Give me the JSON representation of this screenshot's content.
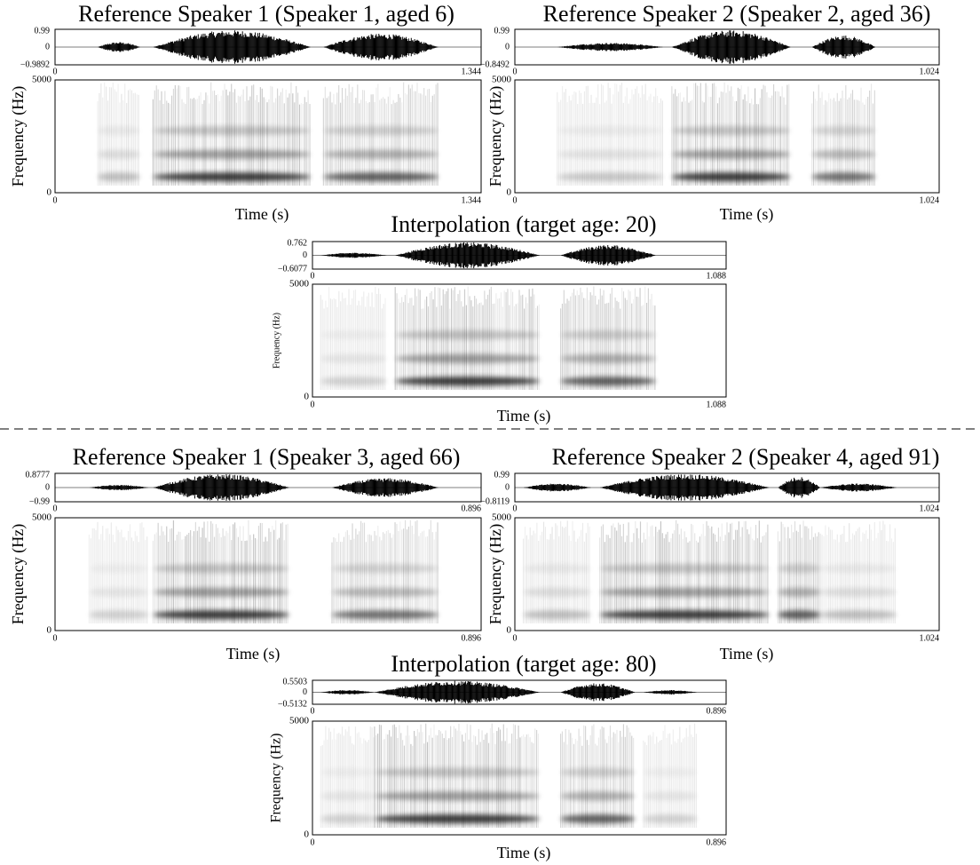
{
  "panels": [
    {
      "title": "Reference Speaker 1 (Speaker 1, aged 6)",
      "wave_yticks": [
        "0.99",
        "0",
        "−0.9892"
      ],
      "wave_xticks": [
        "0",
        "1.344"
      ],
      "spec_yticks": [
        "5000",
        "0"
      ],
      "spec_xticks": [
        "0",
        "1.344"
      ],
      "ylabel": "Frequency (Hz)",
      "xlabel": "Time (s)"
    },
    {
      "title": "Reference Speaker 2 (Speaker 2, aged 36)",
      "wave_yticks": [
        "0.99",
        "0",
        "−0.8492"
      ],
      "wave_xticks": [
        "0",
        "1.024"
      ],
      "spec_yticks": [
        "5000",
        "0"
      ],
      "spec_xticks": [
        "0",
        "1.024"
      ],
      "ylabel": "Frequency (Hz)",
      "xlabel": "Time (s)"
    },
    {
      "title": "Interpolation  (target age: 20)",
      "wave_yticks": [
        "0.762",
        "0",
        "−0.6077"
      ],
      "wave_xticks": [
        "0",
        "1.088"
      ],
      "spec_yticks": [
        "5000",
        "0"
      ],
      "spec_xticks": [
        "0",
        "1.088"
      ],
      "ylabel": "Frequency (Hz)",
      "xlabel": "Time (s)"
    },
    {
      "title": "Reference Speaker 1 (Speaker 3, aged 66)",
      "wave_yticks": [
        "0.8777",
        "0",
        "−0.99"
      ],
      "wave_xticks": [
        "0",
        "0.896"
      ],
      "spec_yticks": [
        "5000",
        "0"
      ],
      "spec_xticks": [
        "0",
        "0.896"
      ],
      "ylabel": "Frequency (Hz)",
      "xlabel": "Time (s)"
    },
    {
      "title": "Reference Speaker 2 (Speaker 4, aged 91)",
      "wave_yticks": [
        "0.99",
        "0",
        "−0.8119"
      ],
      "wave_xticks": [
        "0",
        "1.024"
      ],
      "spec_yticks": [
        "5000",
        "0"
      ],
      "spec_xticks": [
        "0",
        "1.024"
      ],
      "ylabel": "Frequency (Hz)",
      "xlabel": "Time (s)"
    },
    {
      "title": "Interpolation  (target age: 80)",
      "wave_yticks": [
        "0.5503",
        "0",
        "−0.5132"
      ],
      "wave_xticks": [
        "0",
        "0.896"
      ],
      "spec_yticks": [
        "5000",
        "0"
      ],
      "spec_xticks": [
        "0",
        "0.896"
      ],
      "ylabel": "Frequency (Hz)",
      "xlabel": "Time (s)"
    }
  ]
}
